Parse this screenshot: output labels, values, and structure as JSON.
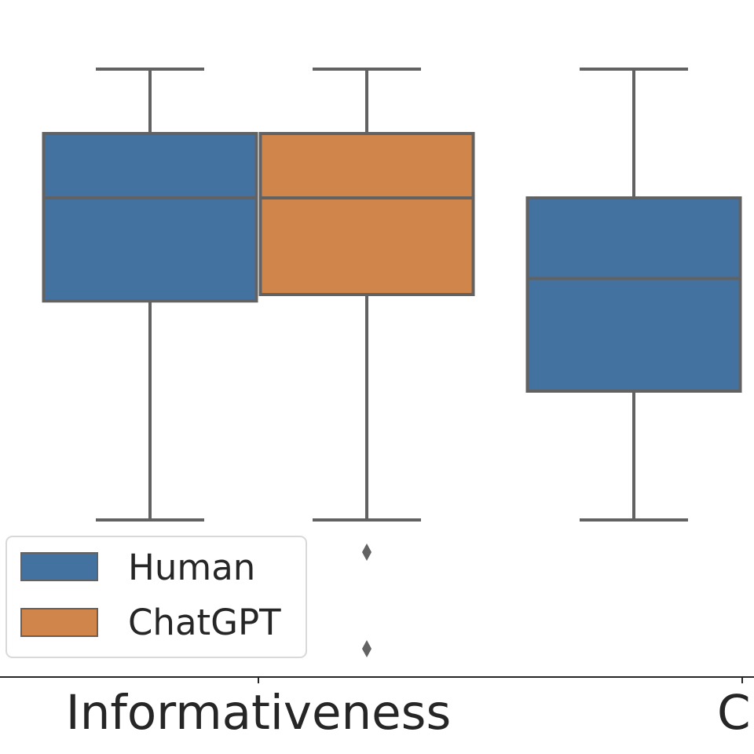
{
  "chart_data": {
    "type": "box",
    "categories": [
      "Informativeness",
      "C"
    ],
    "series": [
      {
        "name": "Human",
        "color": "#4472a0",
        "boxes": [
          {
            "category": "Informativeness",
            "whisker_low": 0.0,
            "q1": 3.4,
            "median": 5.0,
            "q3": 6.0,
            "whisker_high": 7.0,
            "outliers": []
          },
          {
            "category": "C",
            "whisker_low": 0.0,
            "q1": 2.0,
            "median": 3.75,
            "q3": 5.0,
            "whisker_high": 7.0,
            "outliers": []
          }
        ]
      },
      {
        "name": "ChatGPT",
        "color": "#d0854b",
        "boxes": [
          {
            "category": "Informativeness",
            "whisker_low": 0.0,
            "q1": 3.5,
            "median": 5.0,
            "q3": 6.0,
            "whisker_high": 7.0,
            "outliers": [
              -0.5,
              -2.0
            ]
          }
        ]
      }
    ],
    "legend": {
      "position": "lower-left",
      "entries": [
        "Human",
        "ChatGPT"
      ]
    },
    "grid": false,
    "colors": {
      "edge": "#626262",
      "axis": "#262626",
      "text": "#262626"
    }
  }
}
